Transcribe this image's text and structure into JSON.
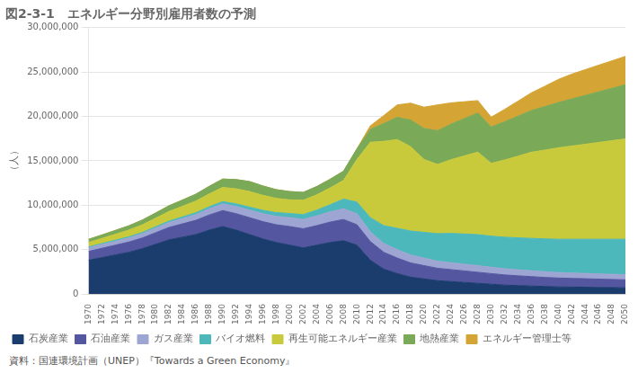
{
  "chart_data": {
    "type": "area",
    "title": "図2-3-1　エネルギー分野別雇用者数の予測",
    "ylabel": "（人）",
    "source": "資料：国連環境計画（UNEP）『Towards a Green Economy』",
    "x": [
      1970,
      1972,
      1974,
      1976,
      1978,
      1980,
      1982,
      1984,
      1986,
      1988,
      1990,
      1992,
      1994,
      1996,
      1998,
      2000,
      2002,
      2004,
      2006,
      2008,
      2010,
      2012,
      2014,
      2016,
      2018,
      2020,
      2022,
      2024,
      2026,
      2028,
      2030,
      2032,
      2034,
      2036,
      2038,
      2040,
      2042,
      2044,
      2046,
      2048,
      2050
    ],
    "xlim": [
      1970,
      2050
    ],
    "xticks": [
      1970,
      1972,
      1974,
      1976,
      1978,
      1980,
      1982,
      1984,
      1986,
      1988,
      1990,
      1992,
      1994,
      1996,
      1998,
      2000,
      2002,
      2004,
      2006,
      2008,
      2010,
      2012,
      2014,
      2016,
      2018,
      2020,
      2022,
      2024,
      2026,
      2028,
      2030,
      2032,
      2034,
      2036,
      2038,
      2040,
      2042,
      2044,
      2046,
      2048,
      2050
    ],
    "ylim": [
      0,
      30000000
    ],
    "yticks": [
      0,
      {
        "value": 5000000,
        "label": "5,000,000"
      },
      {
        "value": 10000000,
        "label": "10,000,000"
      },
      {
        "value": 15000000,
        "label": "15,000,000"
      },
      {
        "value": 20000000,
        "label": "20,000,000"
      },
      {
        "value": 25000000,
        "label": "25,000,000"
      },
      {
        "value": 30000000,
        "label": "30,000,000"
      }
    ],
    "stacked": true,
    "grid": true,
    "legend": "bottom",
    "series": [
      {
        "name": "石炭産業",
        "color": "#1b3d6e",
        "values": [
          3800000,
          4100000,
          4400000,
          4700000,
          5100000,
          5600000,
          6100000,
          6400000,
          6700000,
          7200000,
          7600000,
          7200000,
          6700000,
          6200000,
          5800000,
          5500000,
          5200000,
          5500000,
          5800000,
          6000000,
          5500000,
          3800000,
          2800000,
          2300000,
          1900000,
          1700000,
          1500000,
          1400000,
          1300000,
          1200000,
          1100000,
          1000000,
          950000,
          900000,
          850000,
          800000,
          780000,
          760000,
          740000,
          720000,
          700000
        ]
      },
      {
        "name": "石油産業",
        "color": "#5457a0",
        "values": [
          1000000,
          1050000,
          1100000,
          1150000,
          1200000,
          1300000,
          1400000,
          1500000,
          1600000,
          1700000,
          1800000,
          1850000,
          1900000,
          1950000,
          2000000,
          2100000,
          2150000,
          2200000,
          2300000,
          2400000,
          2300000,
          2100000,
          1900000,
          1750000,
          1600000,
          1500000,
          1400000,
          1350000,
          1300000,
          1250000,
          1200000,
          1150000,
          1100000,
          1060000,
          1020000,
          1000000,
          980000,
          960000,
          940000,
          920000,
          900000
        ]
      },
      {
        "name": "ガス産業",
        "color": "#9da6d2",
        "values": [
          400000,
          420000,
          440000,
          460000,
          490000,
          520000,
          560000,
          600000,
          650000,
          700000,
          750000,
          800000,
          850000,
          900000,
          950000,
          1000000,
          1050000,
          1100000,
          1150000,
          1200000,
          1250000,
          1100000,
          1000000,
          950000,
          900000,
          850000,
          800000,
          780000,
          760000,
          740000,
          720000,
          700000,
          680000,
          660000,
          640000,
          620000,
          610000,
          600000,
          590000,
          580000,
          570000
        ]
      },
      {
        "name": "バイオ燃料",
        "color": "#4db8bb",
        "values": [
          100000,
          110000,
          120000,
          130000,
          140000,
          150000,
          160000,
          180000,
          200000,
          230000,
          260000,
          300000,
          340000,
          380000,
          420000,
          470000,
          550000,
          650000,
          800000,
          1100000,
          1300000,
          1600000,
          2000000,
          2400000,
          2700000,
          2900000,
          3100000,
          3300000,
          3400000,
          3500000,
          3500000,
          3550000,
          3600000,
          3650000,
          3700000,
          3750000,
          3800000,
          3850000,
          3900000,
          3950000,
          4000000
        ]
      },
      {
        "name": "再生可能エネルギー産業",
        "color": "#c8ca3c",
        "values": [
          500000,
          580000,
          670000,
          760000,
          860000,
          970000,
          1080000,
          1200000,
          1320000,
          1450000,
          1600000,
          1700000,
          1750000,
          1680000,
          1600000,
          1540000,
          1620000,
          1720000,
          1900000,
          2100000,
          4800000,
          8500000,
          9500000,
          10000000,
          9500000,
          8200000,
          7800000,
          8300000,
          8800000,
          9300000,
          8200000,
          8700000,
          9200000,
          9700000,
          10000000,
          10300000,
          10500000,
          10700000,
          10900000,
          11100000,
          11300000
        ]
      },
      {
        "name": "地熱産業",
        "color": "#7aaa58",
        "values": [
          350000,
          390000,
          430000,
          480000,
          530000,
          580000,
          640000,
          700000,
          770000,
          850000,
          940000,
          1040000,
          1130000,
          1060000,
          980000,
          930000,
          880000,
          930000,
          980000,
          1040000,
          1200000,
          1450000,
          2000000,
          2500000,
          3000000,
          3500000,
          3800000,
          4000000,
          4200000,
          4400000,
          4100000,
          4300000,
          4500000,
          4700000,
          4900000,
          5100000,
          5300000,
          5500000,
          5700000,
          5900000,
          6100000
        ]
      },
      {
        "name": "エネルギー管理士等",
        "color": "#d4a534",
        "values": [
          0,
          0,
          0,
          0,
          0,
          0,
          0,
          0,
          0,
          0,
          0,
          0,
          0,
          0,
          0,
          0,
          0,
          0,
          0,
          0,
          0,
          400000,
          900000,
          1400000,
          1900000,
          2400000,
          2900000,
          2400000,
          1900000,
          1400000,
          1100000,
          1400000,
          1700000,
          2000000,
          2300000,
          2600000,
          2800000,
          2900000,
          3000000,
          3100000,
          3200000
        ]
      }
    ]
  }
}
